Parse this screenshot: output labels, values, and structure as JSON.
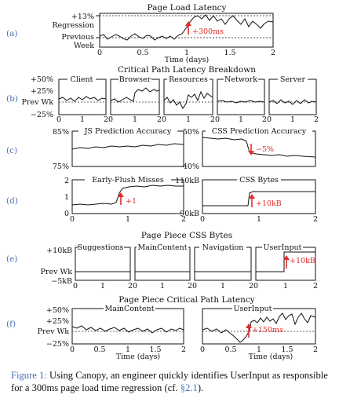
{
  "figure": {
    "top": {
      "label": "(a)",
      "title": "Page Load Latency",
      "y_ticks": [
        "+13%",
        "Regression",
        "Previous",
        "Week"
      ],
      "x_ticks": [
        "0",
        "0.5",
        "1",
        "1.5",
        "2"
      ],
      "xlabel": "Time (days)",
      "annotation": "+300ms"
    },
    "rows": [
      {
        "label": "(b)",
        "title": "Critical Path Latency Breakdown",
        "y_ticks": [
          "+50%",
          "+25%",
          "Prev Wk",
          "−25%"
        ],
        "panels": [
          {
            "title": "Client"
          },
          {
            "title": "Browser"
          },
          {
            "title": "Resources"
          },
          {
            "title": "Network"
          },
          {
            "title": "Server"
          }
        ],
        "x_ticks": [
          "0",
          "1",
          "2"
        ]
      },
      {
        "label": "(c)",
        "panels": [
          {
            "title": "JS Prediction Accuracy",
            "y_ticks": [
              "85%",
              "75%"
            ]
          },
          {
            "title": "CSS Prediction Accuracy",
            "y_ticks": [
              "50%",
              "40%"
            ],
            "annotation": "−5%"
          }
        ]
      },
      {
        "label": "(d)",
        "panels": [
          {
            "title": "Early-Flush Misses",
            "y_ticks": [
              "2",
              "1",
              "0"
            ],
            "annotation": "+1"
          },
          {
            "title": "CSS Bytes",
            "y_ticks": [
              "110kB",
              "90kB"
            ],
            "annotation": "+10kB"
          }
        ],
        "x_ticks": [
          "0",
          "1",
          "2"
        ]
      },
      {
        "label": "(e)",
        "title": "Page Piece CSS Bytes",
        "y_ticks": [
          "+10kB",
          "Prev Wk",
          "−5kB"
        ],
        "panels": [
          {
            "title": "Suggestions"
          },
          {
            "title": "MainContent"
          },
          {
            "title": "Navigation"
          },
          {
            "title": "UserInput",
            "annotation": "+10kB"
          }
        ],
        "x_ticks": [
          "0",
          "1",
          "2"
        ]
      },
      {
        "label": "(f)",
        "title": "Page Piece Critical Path Latency",
        "y_ticks": [
          "+50%",
          "+25%",
          "Prev Wk",
          "−25%"
        ],
        "panels": [
          {
            "title": "MainContent"
          },
          {
            "title": "UserInput",
            "annotation": "+150ms"
          }
        ],
        "x_ticks": [
          "0",
          "0.5",
          "1",
          "1.5",
          "2"
        ],
        "xlabel": "Time (days)"
      }
    ]
  },
  "caption": {
    "label": "Figure 1:",
    "text": " Using Canopy, an engineer quickly identifies UserInput as responsible for a 300ms page load time regression (cf. ",
    "ref": "§2.1",
    "tail": ")."
  },
  "colors": {
    "annotation": "#e52a2a",
    "caption_link": "#4a6fb0"
  }
}
